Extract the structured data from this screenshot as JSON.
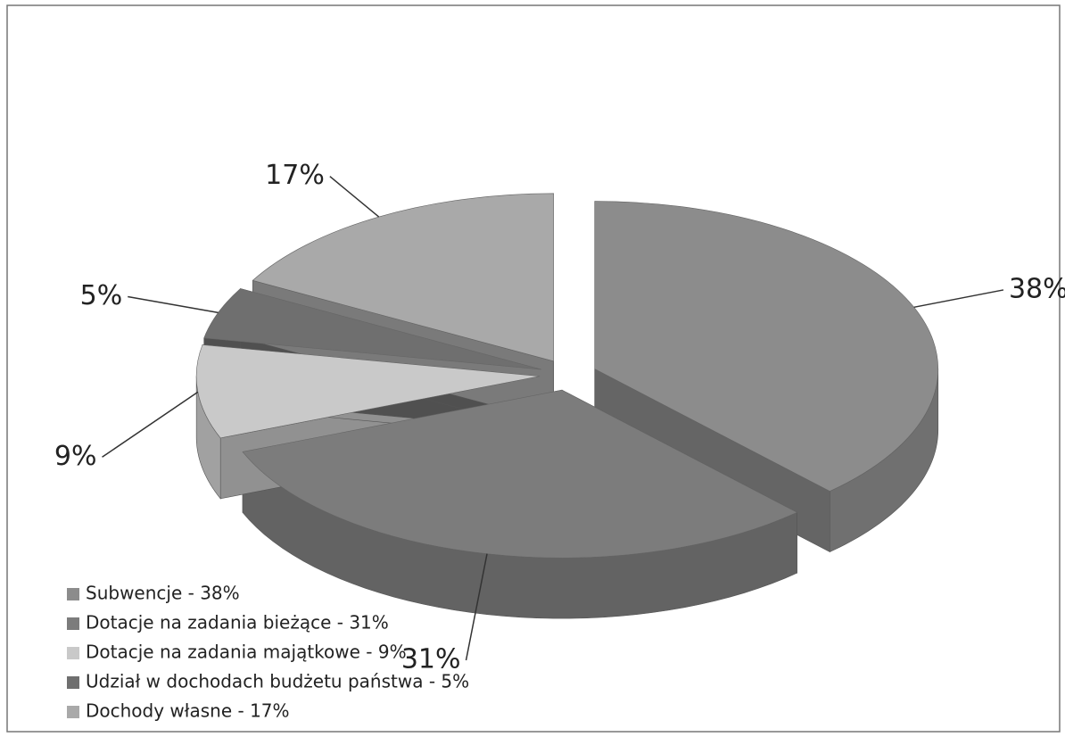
{
  "chart_data": {
    "type": "pie",
    "categories": [
      "Subwencje - 38%",
      "Dotacje na zadania bieżące - 31%",
      "Dotacje na zadania majątkowe - 9%",
      "Udział w dochodach budżetu państwa - 5%",
      "Dochody własne - 17%"
    ],
    "values": [
      38,
      31,
      9,
      5,
      17
    ],
    "value_labels": [
      "38%",
      "31%",
      "9%",
      "5%",
      "17%"
    ],
    "colors": [
      "#8c8c8c",
      "#7c7c7c",
      "#c9c9c9",
      "#6f6f6f",
      "#a9a9a9"
    ],
    "legend": "bottom-left"
  }
}
